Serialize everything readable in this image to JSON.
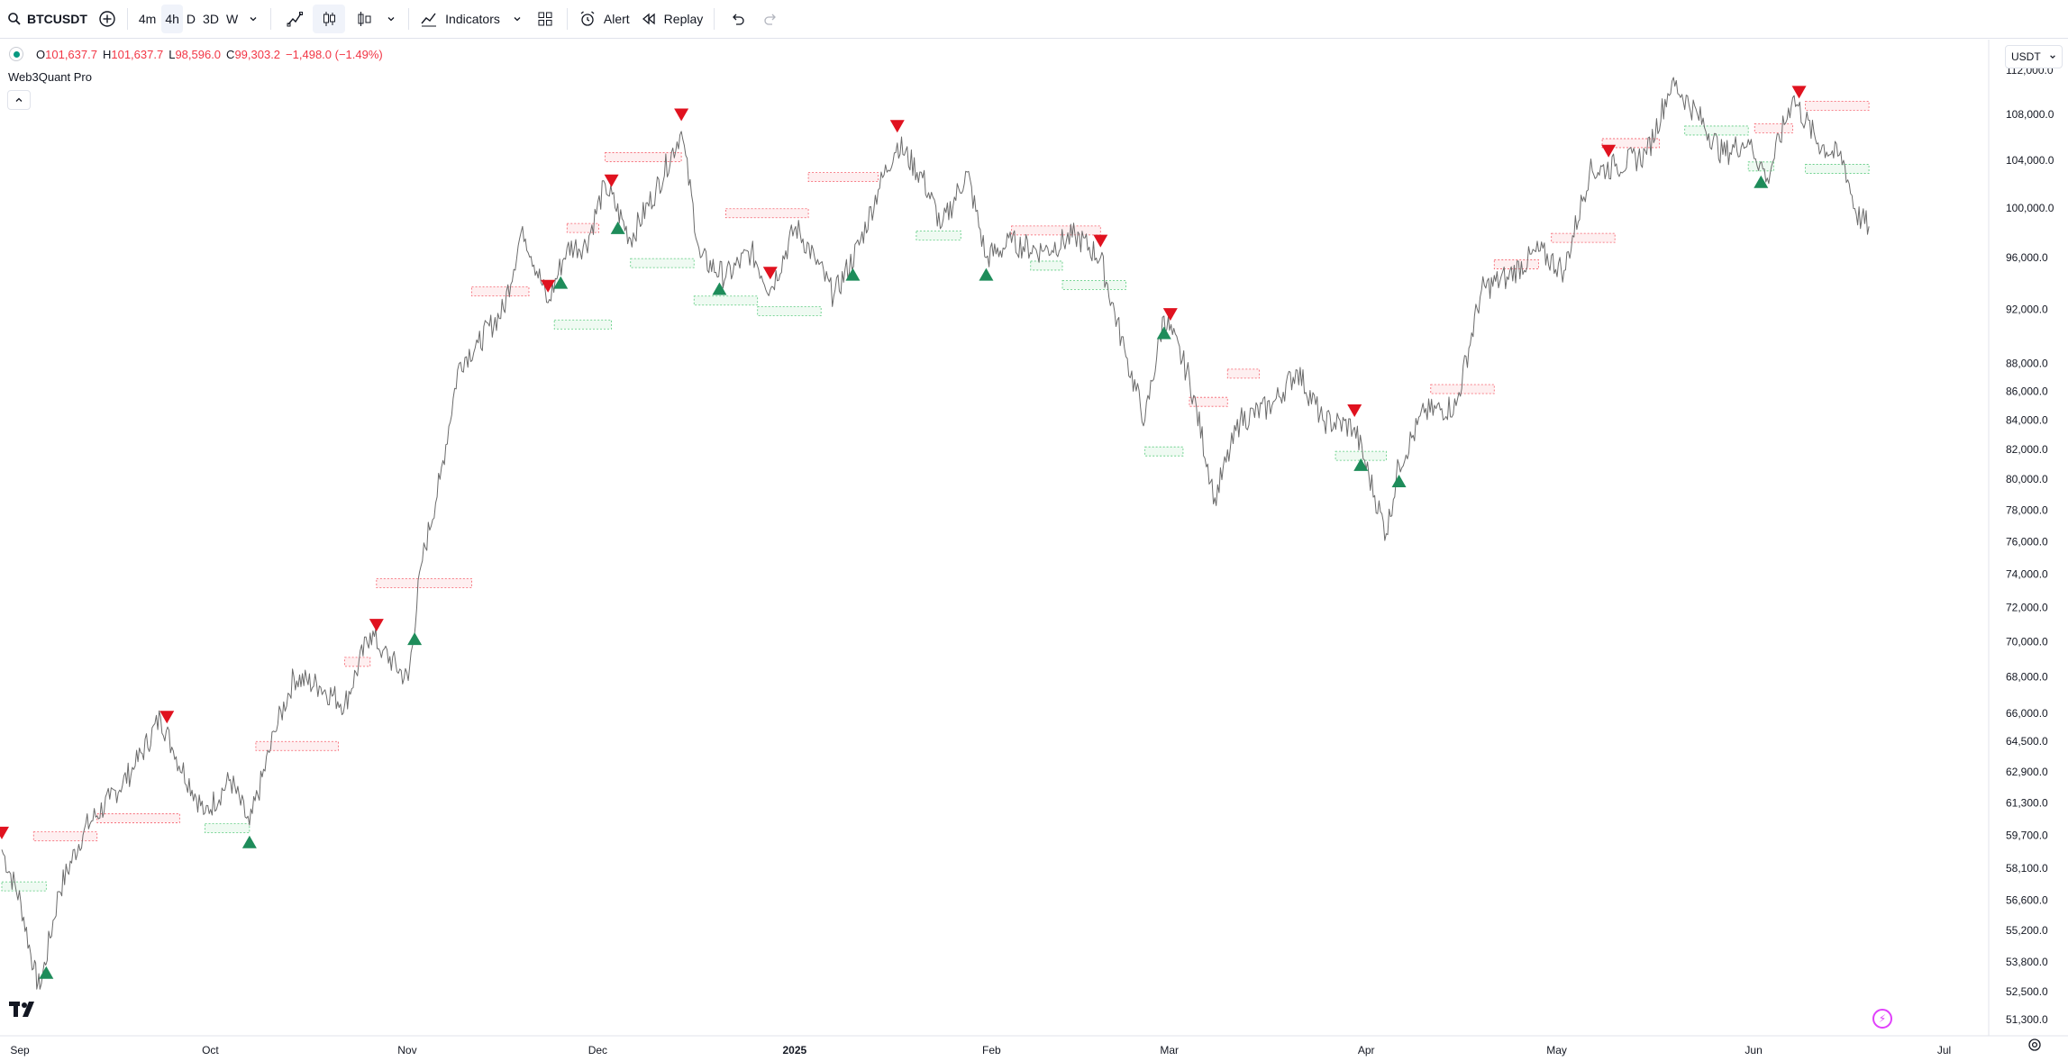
{
  "toolbar": {
    "symbol": "BTCUSDT",
    "intervals": [
      "4m",
      "4h",
      "D",
      "3D",
      "W"
    ],
    "active_interval": "4h",
    "indicators_label": "Indicators",
    "alert_label": "Alert",
    "replay_label": "Replay"
  },
  "legend": {
    "o_label": "O",
    "o_value": "101,637.7",
    "h_label": "H",
    "h_value": "101,637.7",
    "l_label": "L",
    "l_value": "98,596.0",
    "c_label": "C",
    "c_value": "99,303.2",
    "change": "−1,498.0 (−1.49%)"
  },
  "indicator_name": "Web3Quant Pro",
  "currency": "USDT",
  "colors": {
    "up": "#089981",
    "down": "#f23645",
    "signal_up": "#1e8c5a",
    "signal_down": "#e0121f",
    "zone_up": "#2ebd5b",
    "zone_down": "#f23645",
    "price": "#6b6b6b"
  },
  "chart_data": {
    "type": "line",
    "symbol": "BTCUSDT",
    "interval": "4h",
    "y_scale": "log",
    "price_axis_ticks": [
      "112,000.0",
      "108,000.0",
      "104,000.0",
      "100,000.0",
      "96,000.0",
      "92,000.0",
      "88,000.0",
      "86,000.0",
      "84,000.0",
      "82,000.0",
      "80,000.0",
      "78,000.0",
      "76,000.0",
      "74,000.0",
      "72,000.0",
      "70,000.0",
      "68,000.0",
      "66,000.0",
      "64,500.0",
      "62,900.0",
      "61,300.0",
      "59,700.0",
      "58,100.0",
      "56,600.0",
      "55,200.0",
      "53,800.0",
      "52,500.0",
      "51,300.0"
    ],
    "time_axis_ticks": [
      "Sep",
      "Oct",
      "Nov",
      "Dec",
      "2025",
      "Feb",
      "Mar",
      "Apr",
      "May",
      "Jun",
      "Jul"
    ],
    "x_range": [
      "2024-09-01",
      "2025-07-03"
    ],
    "ylim": [
      50700,
      113500
    ],
    "series": [
      {
        "x": [
          "2024-09-01",
          "2024-09-04",
          "2024-09-06",
          "2024-09-07",
          "2024-09-10",
          "2024-09-14",
          "2024-09-18",
          "2024-09-22",
          "2024-09-26",
          "2024-09-28",
          "2024-10-03",
          "2024-10-07",
          "2024-10-10",
          "2024-10-14",
          "2024-10-17",
          "2024-10-21",
          "2024-10-25",
          "2024-10-29",
          "2024-10-31",
          "2024-11-04",
          "2024-11-06",
          "2024-11-09",
          "2024-11-12",
          "2024-11-15",
          "2024-11-19",
          "2024-11-22",
          "2024-11-26",
          "2024-11-29",
          "2024-12-02",
          "2024-12-05",
          "2024-12-09",
          "2024-12-13",
          "2024-12-17",
          "2024-12-20",
          "2024-12-24",
          "2024-12-28",
          "2024-12-31",
          "2025-01-04",
          "2025-01-07",
          "2025-01-10",
          "2025-01-14",
          "2025-01-17",
          "2025-01-20",
          "2025-01-24",
          "2025-01-27",
          "2025-01-31",
          "2025-02-03",
          "2025-02-07",
          "2025-02-12",
          "2025-02-17",
          "2025-02-21",
          "2025-02-25",
          "2025-02-28",
          "2025-03-03",
          "2025-03-07",
          "2025-03-11",
          "2025-03-15",
          "2025-03-20",
          "2025-03-24",
          "2025-03-28",
          "2025-04-02",
          "2025-04-07",
          "2025-04-09",
          "2025-04-13",
          "2025-04-18",
          "2025-04-22",
          "2025-04-26",
          "2025-05-01",
          "2025-05-05",
          "2025-05-09",
          "2025-05-13",
          "2025-05-18",
          "2025-05-22",
          "2025-05-26",
          "2025-05-30",
          "2025-06-03",
          "2025-06-06",
          "2025-06-10",
          "2025-06-14",
          "2025-06-18",
          "2025-06-20",
          "2025-06-22"
        ],
        "y": [
          59000,
          56500,
          53500,
          52600,
          57000,
          60000,
          61500,
          63200,
          65800,
          64000,
          60800,
          62500,
          60200,
          65000,
          68000,
          67500,
          66500,
          70500,
          69500,
          67800,
          74500,
          80000,
          88000,
          89500,
          92000,
          98500,
          92500,
          96800,
          97000,
          102000,
          97500,
          101500,
          106500,
          96000,
          94500,
          96500,
          93500,
          98500,
          96000,
          93000,
          97000,
          101500,
          105500,
          102500,
          98500,
          103000,
          96000,
          97200,
          96500,
          97800,
          96000,
          88500,
          84000,
          91500,
          87000,
          78800,
          84000,
          85000,
          87500,
          84000,
          83500,
          76500,
          81000,
          84500,
          85000,
          93500,
          94500,
          96500,
          95000,
          103000,
          103500,
          104500,
          111000,
          108000,
          104500,
          105800,
          102500,
          109500,
          105500,
          104000,
          99500,
          98500
        ]
      }
    ],
    "signals": [
      {
        "date": "2024-09-01",
        "type": "sell"
      },
      {
        "date": "2024-09-08",
        "type": "buy"
      },
      {
        "date": "2024-09-27",
        "type": "sell"
      },
      {
        "date": "2024-10-10",
        "type": "buy"
      },
      {
        "date": "2024-10-30",
        "type": "sell"
      },
      {
        "date": "2024-11-05",
        "type": "buy"
      },
      {
        "date": "2024-11-26",
        "type": "sell"
      },
      {
        "date": "2024-11-28",
        "type": "buy"
      },
      {
        "date": "2024-12-06",
        "type": "sell"
      },
      {
        "date": "2024-12-07",
        "type": "buy"
      },
      {
        "date": "2024-12-17",
        "type": "sell"
      },
      {
        "date": "2024-12-23",
        "type": "buy"
      },
      {
        "date": "2024-12-31",
        "type": "sell"
      },
      {
        "date": "2025-01-13",
        "type": "buy"
      },
      {
        "date": "2025-01-20",
        "type": "sell"
      },
      {
        "date": "2025-02-03",
        "type": "buy"
      },
      {
        "date": "2025-02-21",
        "type": "sell"
      },
      {
        "date": "2025-03-03",
        "type": "buy"
      },
      {
        "date": "2025-03-04",
        "type": "sell"
      },
      {
        "date": "2025-04-02",
        "type": "sell"
      },
      {
        "date": "2025-04-03",
        "type": "buy"
      },
      {
        "date": "2025-04-09",
        "type": "buy"
      },
      {
        "date": "2025-05-12",
        "type": "sell"
      },
      {
        "date": "2025-06-05",
        "type": "buy"
      },
      {
        "date": "2025-06-11",
        "type": "sell"
      }
    ],
    "zones": [
      {
        "type": "supply",
        "start": "2024-09-06",
        "end": "2024-09-16",
        "price": 59600
      },
      {
        "type": "supply",
        "start": "2024-09-16",
        "end": "2024-09-29",
        "price": 60500
      },
      {
        "type": "demand",
        "start": "2024-09-01",
        "end": "2024-09-08",
        "price": 57200
      },
      {
        "type": "demand",
        "start": "2024-10-03",
        "end": "2024-10-10",
        "price": 60000
      },
      {
        "type": "supply",
        "start": "2024-10-11",
        "end": "2024-10-24",
        "price": 64200
      },
      {
        "type": "supply",
        "start": "2024-10-25",
        "end": "2024-10-29",
        "price": 68800
      },
      {
        "type": "supply",
        "start": "2024-10-30",
        "end": "2024-11-14",
        "price": 73400
      },
      {
        "type": "supply",
        "start": "2024-11-14",
        "end": "2024-11-23",
        "price": 93300
      },
      {
        "type": "demand",
        "start": "2024-11-27",
        "end": "2024-12-06",
        "price": 90800
      },
      {
        "type": "supply",
        "start": "2024-11-29",
        "end": "2024-12-04",
        "price": 98300
      },
      {
        "type": "supply",
        "start": "2024-12-05",
        "end": "2024-12-17",
        "price": 104200
      },
      {
        "type": "demand",
        "start": "2024-12-09",
        "end": "2024-12-19",
        "price": 95500
      },
      {
        "type": "demand",
        "start": "2024-12-19",
        "end": "2024-12-29",
        "price": 92600
      },
      {
        "type": "supply",
        "start": "2024-12-24",
        "end": "2025-01-06",
        "price": 99500
      },
      {
        "type": "demand",
        "start": "2024-12-29",
        "end": "2025-01-08",
        "price": 91800
      },
      {
        "type": "supply",
        "start": "2025-01-06",
        "end": "2025-01-17",
        "price": 102500
      },
      {
        "type": "demand",
        "start": "2025-01-23",
        "end": "2025-01-30",
        "price": 97700
      },
      {
        "type": "supply",
        "start": "2025-02-07",
        "end": "2025-02-21",
        "price": 98100
      },
      {
        "type": "demand",
        "start": "2025-02-10",
        "end": "2025-02-15",
        "price": 95300
      },
      {
        "type": "demand",
        "start": "2025-02-15",
        "end": "2025-02-25",
        "price": 93800
      },
      {
        "type": "demand",
        "start": "2025-02-28",
        "end": "2025-03-06",
        "price": 81800
      },
      {
        "type": "supply",
        "start": "2025-03-07",
        "end": "2025-03-13",
        "price": 85200
      },
      {
        "type": "supply",
        "start": "2025-03-13",
        "end": "2025-03-18",
        "price": 87200
      },
      {
        "type": "demand",
        "start": "2025-03-30",
        "end": "2025-04-07",
        "price": 81500
      },
      {
        "type": "supply",
        "start": "2025-04-14",
        "end": "2025-04-24",
        "price": 86100
      },
      {
        "type": "supply",
        "start": "2025-04-24",
        "end": "2025-05-01",
        "price": 95400
      },
      {
        "type": "supply",
        "start": "2025-05-03",
        "end": "2025-05-13",
        "price": 97500
      },
      {
        "type": "supply",
        "start": "2025-05-11",
        "end": "2025-05-20",
        "price": 105400
      },
      {
        "type": "demand",
        "start": "2025-05-24",
        "end": "2025-06-03",
        "price": 106500
      },
      {
        "type": "supply",
        "start": "2025-06-04",
        "end": "2025-06-10",
        "price": 106700
      },
      {
        "type": "demand",
        "start": "2025-06-03",
        "end": "2025-06-07",
        "price": 103400
      },
      {
        "type": "supply",
        "start": "2025-06-12",
        "end": "2025-06-22",
        "price": 108700
      },
      {
        "type": "demand",
        "start": "2025-06-12",
        "end": "2025-06-22",
        "price": 103200
      }
    ]
  }
}
